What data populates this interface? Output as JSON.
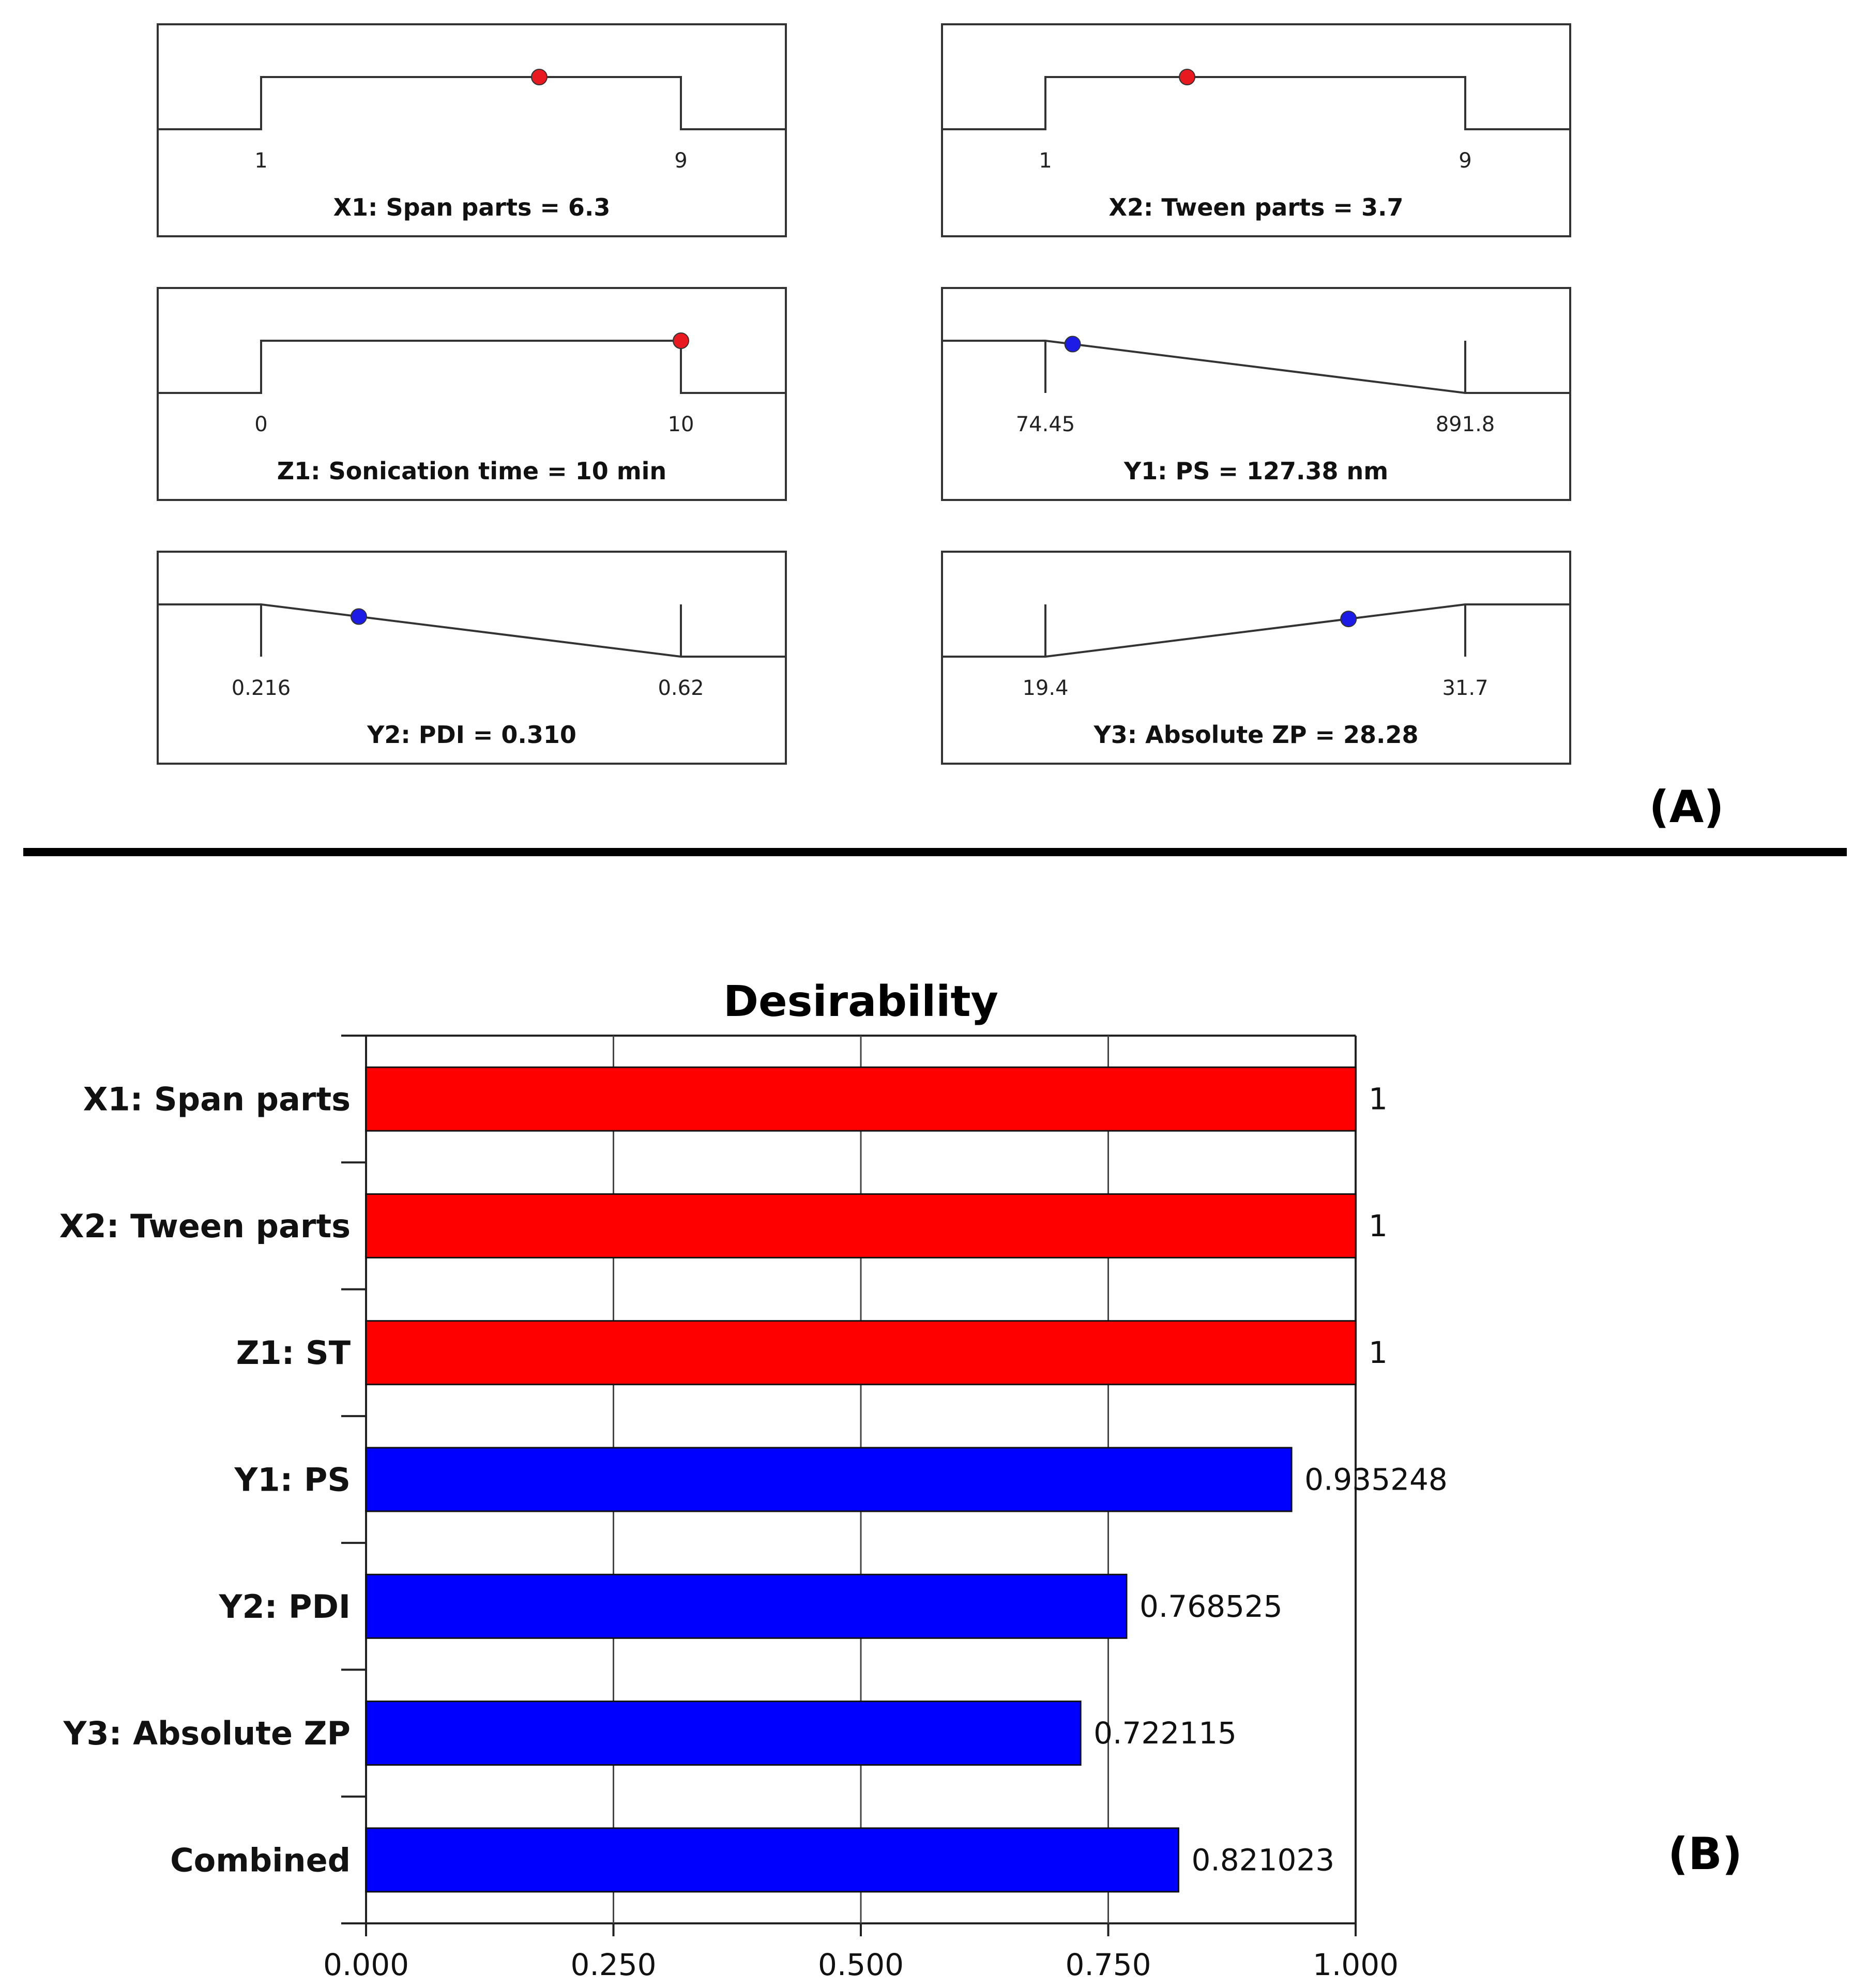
{
  "chart_data": [
    {
      "type": "ramp",
      "panel": "A",
      "panel_label": "(A)",
      "factors": [
        {
          "name": "X1: Span parts",
          "caption": "X1: Span parts = 6.3",
          "low": 1,
          "high": 9,
          "low_label": "1",
          "high_label": "9",
          "value": 6.3,
          "goal": "in range",
          "marker_color": "#e8191f"
        },
        {
          "name": "X2: Tween parts",
          "caption": "X2: Tween parts = 3.7",
          "low": 1,
          "high": 9,
          "low_label": "1",
          "high_label": "9",
          "value": 3.7,
          "goal": "in range",
          "marker_color": "#e8191f"
        },
        {
          "name": "Z1: Sonication time",
          "caption": "Z1: Sonication time = 10 min",
          "low": 0,
          "high": 10,
          "low_label": "0",
          "high_label": "10",
          "value": 10,
          "goal": "in range",
          "marker_color": "#e8191f"
        },
        {
          "name": "Y1: PS",
          "caption": "Y1: PS = 127.38 nm",
          "low": 74.45,
          "high": 891.8,
          "low_label": "74.45",
          "high_label": "891.8",
          "value": 127.38,
          "goal": "minimize",
          "marker_color": "#1c1ce6"
        },
        {
          "name": "Y2: PDI",
          "caption": "Y2: PDI = 0.310",
          "low": 0.216,
          "high": 0.62,
          "low_label": "0.216",
          "high_label": "0.62",
          "value": 0.31,
          "goal": "minimize",
          "marker_color": "#1c1ce6"
        },
        {
          "name": "Y3: Absolute ZP",
          "caption": "Y3: Absolute ZP = 28.28",
          "low": 19.4,
          "high": 31.7,
          "low_label": "19.4",
          "high_label": "31.7",
          "value": 28.28,
          "goal": "maximize",
          "marker_color": "#1c1ce6"
        }
      ]
    },
    {
      "type": "bar",
      "orientation": "horizontal",
      "panel": "B",
      "panel_label": "(B)",
      "title": "Desirability",
      "xlabel": "",
      "ylabel": "",
      "xlim": [
        0,
        1
      ],
      "xticks": [
        "0.000",
        "0.250",
        "0.500",
        "0.750",
        "1.000"
      ],
      "grid": true,
      "categories": [
        "X1: Span parts",
        "X2: Tween parts",
        "Z1: ST",
        "Y1: PS",
        "Y2: PDI",
        "Y3: Absolute ZP",
        "Combined"
      ],
      "values": [
        1,
        1,
        1,
        0.935248,
        0.768525,
        0.722115,
        0.821023
      ],
      "value_labels": [
        "1",
        "1",
        "1",
        "0.935248",
        "0.768525",
        "0.722115",
        "0.821023"
      ],
      "colors": [
        "#ff0000",
        "#ff0000",
        "#ff0000",
        "#0000ff",
        "#0000ff",
        "#0000ff",
        "#0000ff"
      ]
    }
  ]
}
